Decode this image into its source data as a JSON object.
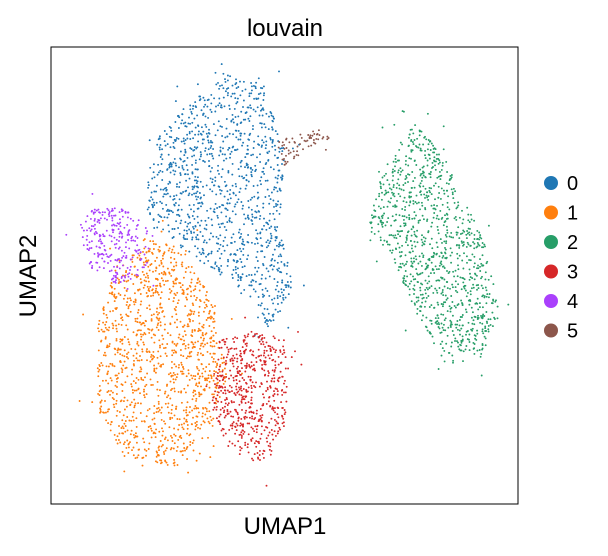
{
  "chart_data": {
    "type": "scatter",
    "title": "louvain",
    "xlabel": "UMAP1",
    "ylabel": "UMAP2",
    "xticks": "none",
    "yticks": "none",
    "grid": false,
    "legend": {
      "placement": "right",
      "entries": [
        {
          "label": "0",
          "color": "#1f77b4"
        },
        {
          "label": "1",
          "color": "#ff7f0e"
        },
        {
          "label": "2",
          "color": "#279e68"
        },
        {
          "label": "3",
          "color": "#d62728"
        },
        {
          "label": "4",
          "color": "#aa40fc"
        },
        {
          "label": "5",
          "color": "#8c564b"
        }
      ]
    },
    "clusters": [
      {
        "name": "0",
        "color": "#1f77b4",
        "approx_share": 0.26,
        "region": [
          [
            0.3,
            0.12
          ],
          [
            0.38,
            0.06
          ],
          [
            0.45,
            0.08
          ],
          [
            0.5,
            0.22
          ],
          [
            0.49,
            0.4
          ],
          [
            0.52,
            0.52
          ],
          [
            0.47,
            0.62
          ],
          [
            0.4,
            0.53
          ],
          [
            0.3,
            0.46
          ],
          [
            0.2,
            0.36
          ],
          [
            0.22,
            0.2
          ]
        ]
      },
      {
        "name": "1",
        "color": "#ff7f0e",
        "approx_share": 0.28,
        "region": [
          [
            0.2,
            0.42
          ],
          [
            0.28,
            0.44
          ],
          [
            0.35,
            0.56
          ],
          [
            0.38,
            0.7
          ],
          [
            0.34,
            0.86
          ],
          [
            0.28,
            0.92
          ],
          [
            0.16,
            0.9
          ],
          [
            0.1,
            0.8
          ],
          [
            0.1,
            0.6
          ],
          [
            0.14,
            0.48
          ]
        ]
      },
      {
        "name": "2",
        "color": "#279e68",
        "approx_share": 0.24,
        "region": [
          [
            0.74,
            0.21
          ],
          [
            0.78,
            0.17
          ],
          [
            0.81,
            0.2
          ],
          [
            0.86,
            0.28
          ],
          [
            0.93,
            0.43
          ],
          [
            0.96,
            0.58
          ],
          [
            0.92,
            0.68
          ],
          [
            0.85,
            0.7
          ],
          [
            0.79,
            0.6
          ],
          [
            0.73,
            0.46
          ],
          [
            0.68,
            0.4
          ],
          [
            0.7,
            0.3
          ]
        ]
      },
      {
        "name": "3",
        "color": "#d62728",
        "approx_share": 0.13,
        "region": [
          [
            0.36,
            0.64
          ],
          [
            0.44,
            0.62
          ],
          [
            0.5,
            0.64
          ],
          [
            0.51,
            0.72
          ],
          [
            0.5,
            0.84
          ],
          [
            0.45,
            0.92
          ],
          [
            0.38,
            0.88
          ],
          [
            0.34,
            0.78
          ]
        ]
      },
      {
        "name": "4",
        "color": "#aa40fc",
        "approx_share": 0.06,
        "region": [
          [
            0.06,
            0.39
          ],
          [
            0.1,
            0.34
          ],
          [
            0.16,
            0.35
          ],
          [
            0.22,
            0.41
          ],
          [
            0.2,
            0.5
          ],
          [
            0.14,
            0.52
          ],
          [
            0.08,
            0.48
          ]
        ]
      },
      {
        "name": "5",
        "color": "#8c564b",
        "approx_share": 0.015,
        "region": [
          [
            0.48,
            0.21
          ],
          [
            0.53,
            0.19
          ],
          [
            0.58,
            0.18
          ],
          [
            0.6,
            0.2
          ],
          [
            0.54,
            0.23
          ],
          [
            0.5,
            0.26
          ]
        ]
      }
    ]
  }
}
